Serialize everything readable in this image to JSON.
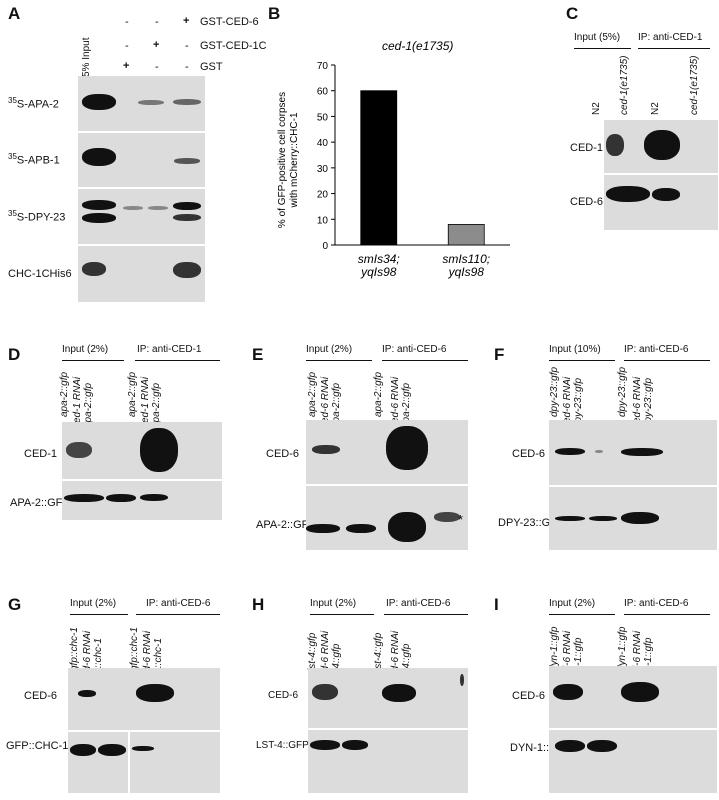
{
  "panelA": {
    "label": "A",
    "input_col": "5% Input",
    "signs": [
      [
        "-",
        "-",
        "+"
      ],
      [
        "-",
        "+",
        "-"
      ],
      [
        "+",
        "-",
        "-"
      ]
    ],
    "row_labels": [
      "GST-CED-6",
      "GST-CED-1C",
      "GST"
    ],
    "blots": [
      {
        "sup": "35",
        "name": "S-APA-2"
      },
      {
        "sup": "35",
        "name": "S-APB-1"
      },
      {
        "sup": "35",
        "name": "S-DPY-23"
      },
      {
        "sup": "",
        "name": "CHC-1CHis6"
      }
    ]
  },
  "panelB": {
    "label": "B",
    "chart_data": {
      "type": "bar",
      "title": "ced-1(e1735)",
      "ylabel": "% of GFP-positive cell corpses with mCherry::CHC-1",
      "categories": [
        "smIs34; yqIs98",
        "smIs110; yqIs98"
      ],
      "values": [
        60,
        8
      ],
      "colors": [
        "#000000",
        "#8c8c8c"
      ],
      "ylim": [
        0,
        70
      ],
      "yticks": [
        0,
        10,
        20,
        30,
        40,
        50,
        60,
        70
      ]
    }
  },
  "panelC": {
    "label": "C",
    "header_input": "Input (5%)",
    "header_ip": "IP: anti-CED-1",
    "lanes": [
      "N2",
      "ced-1(e1735)",
      "N2",
      "ced-1(e1735)"
    ],
    "blot_labels": [
      "CED-1",
      "CED-6"
    ]
  },
  "panelD": {
    "label": "D",
    "header_input": "Input (2%)",
    "header_ip": "IP: anti-CED-1",
    "lanes": [
      [
        "apa-2::gfp"
      ],
      [
        "ced-1 RNAi",
        "apa-2::gfp"
      ],
      [
        "apa-2::gfp"
      ],
      [
        "ced-1 RNAi",
        "apa-2::gfp"
      ]
    ],
    "blot_labels": [
      "CED-1",
      "APA-2::GFP"
    ]
  },
  "panelE": {
    "label": "E",
    "header_input": "Input (2%)",
    "header_ip": "IP: anti-CED-6",
    "lanes": [
      [
        "apa-2::gfp"
      ],
      [
        "ced-6 RNAi",
        "apa-2::gfp"
      ],
      [
        "apa-2::gfp"
      ],
      [
        "ced-6 RNAi",
        "apa-2::gfp"
      ]
    ],
    "blot_labels": [
      "CED-6",
      "APA-2::GFP"
    ],
    "asterisk": "*"
  },
  "panelF": {
    "label": "F",
    "header_input": "Input (10%)",
    "header_ip": "IP: anti-CED-6",
    "lanes": [
      [
        "dpy-23::gfp"
      ],
      [
        "ced-6 RNAi",
        "dpy-23::gfp"
      ],
      [
        "dpy-23::gfp"
      ],
      [
        "ced-6 RNAi",
        "dpy-23::gfp"
      ]
    ],
    "blot_labels": [
      "CED-6",
      "DPY-23::GFP"
    ]
  },
  "panelG": {
    "label": "G",
    "header_input": "Input (2%)",
    "header_ip": "IP: anti-CED-6",
    "lanes": [
      [
        "gfp::chc-1"
      ],
      [
        "ced-6 RNAi",
        "gfp::chc-1"
      ],
      [
        "gfp::chc-1"
      ],
      [
        "ced-6 RNAi",
        "gfp::chc-1"
      ]
    ],
    "blot_labels": [
      "CED-6",
      "GFP::CHC-1"
    ]
  },
  "panelH": {
    "label": "H",
    "header_input": "Input (2%)",
    "header_ip": "IP: anti-CED-6",
    "lanes": [
      [
        "lst-4::gfp"
      ],
      [
        "ced-6 RNAi",
        "lst-4::gfp"
      ],
      [
        "lst-4::gfp"
      ],
      [
        "ced-6 RNAi",
        "lst-4::gfp"
      ]
    ],
    "blot_labels": [
      "CED-6",
      "LST-4::GFP"
    ]
  },
  "panelI": {
    "label": "I",
    "header_input": "Input (2%)",
    "header_ip": "IP: anti-CED-6",
    "lanes": [
      [
        "dyn-1::gfp"
      ],
      [
        "ced-6 RNAi",
        "dyn-1::gfp"
      ],
      [
        "dyn-1::gfp"
      ],
      [
        "ced-6 RNAi",
        "dyn-1::gfp"
      ]
    ],
    "blot_labels": [
      "CED-6",
      "DYN-1::GFP"
    ]
  }
}
